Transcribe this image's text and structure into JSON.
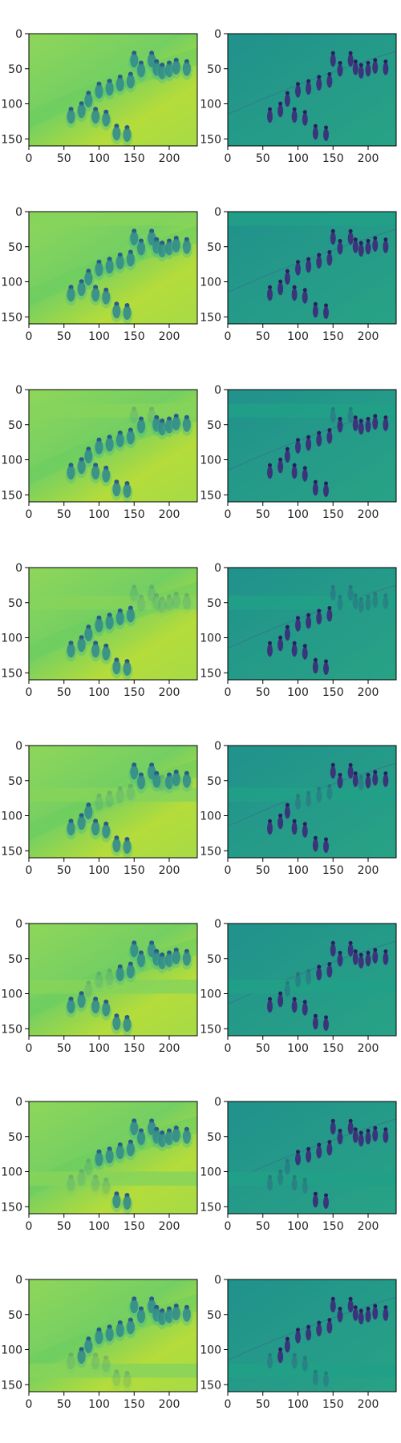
{
  "chart_data": {
    "type": "heatmap",
    "description_rows": 8,
    "description_cols": 2,
    "colormap": "viridis",
    "x_ticks": [
      0,
      50,
      100,
      150,
      200
    ],
    "y_ticks": [
      0,
      50,
      100,
      150
    ],
    "xlim": [
      0,
      240
    ],
    "ylim": [
      160,
      0
    ],
    "panels": [
      {
        "row": 1,
        "col": 1,
        "kind": "reconstruction",
        "masked_y_range": []
      },
      {
        "row": 1,
        "col": 2,
        "kind": "residual",
        "masked_y_range": []
      },
      {
        "row": 2,
        "col": 1,
        "kind": "reconstruction",
        "masked_y_range": [
          0,
          20
        ]
      },
      {
        "row": 2,
        "col": 2,
        "kind": "residual",
        "masked_y_range": [
          0,
          20
        ]
      },
      {
        "row": 3,
        "col": 1,
        "kind": "reconstruction",
        "masked_y_range": [
          20,
          40
        ]
      },
      {
        "row": 3,
        "col": 2,
        "kind": "residual",
        "masked_y_range": [
          20,
          40
        ]
      },
      {
        "row": 4,
        "col": 1,
        "kind": "reconstruction",
        "masked_y_range": [
          40,
          60
        ]
      },
      {
        "row": 4,
        "col": 2,
        "kind": "residual",
        "masked_y_range": [
          40,
          60
        ]
      },
      {
        "row": 5,
        "col": 1,
        "kind": "reconstruction",
        "masked_y_range": [
          60,
          80
        ]
      },
      {
        "row": 5,
        "col": 2,
        "kind": "residual",
        "masked_y_range": [
          60,
          80
        ]
      },
      {
        "row": 6,
        "col": 1,
        "kind": "reconstruction",
        "masked_y_range": [
          80,
          100
        ]
      },
      {
        "row": 6,
        "col": 2,
        "kind": "residual",
        "masked_y_range": [
          80,
          100
        ]
      },
      {
        "row": 7,
        "col": 1,
        "kind": "reconstruction",
        "masked_y_range": [
          100,
          120
        ]
      },
      {
        "row": 7,
        "col": 2,
        "kind": "residual",
        "masked_y_range": [
          100,
          120
        ]
      },
      {
        "row": 8,
        "col": 1,
        "kind": "reconstruction",
        "masked_y_range": [
          120,
          140
        ]
      },
      {
        "row": 8,
        "col": 2,
        "kind": "residual",
        "masked_y_range": [
          120,
          140
        ]
      }
    ],
    "figures": [
      {
        "x": 150,
        "y": 38
      },
      {
        "x": 160,
        "y": 52
      },
      {
        "x": 175,
        "y": 38
      },
      {
        "x": 182,
        "y": 50
      },
      {
        "x": 190,
        "y": 55
      },
      {
        "x": 200,
        "y": 52
      },
      {
        "x": 210,
        "y": 48
      },
      {
        "x": 225,
        "y": 50
      },
      {
        "x": 145,
        "y": 68
      },
      {
        "x": 130,
        "y": 72
      },
      {
        "x": 115,
        "y": 78
      },
      {
        "x": 100,
        "y": 82
      },
      {
        "x": 85,
        "y": 95
      },
      {
        "x": 60,
        "y": 118
      },
      {
        "x": 75,
        "y": 110
      },
      {
        "x": 95,
        "y": 118
      },
      {
        "x": 110,
        "y": 122
      },
      {
        "x": 125,
        "y": 142
      },
      {
        "x": 140,
        "y": 144
      }
    ]
  }
}
